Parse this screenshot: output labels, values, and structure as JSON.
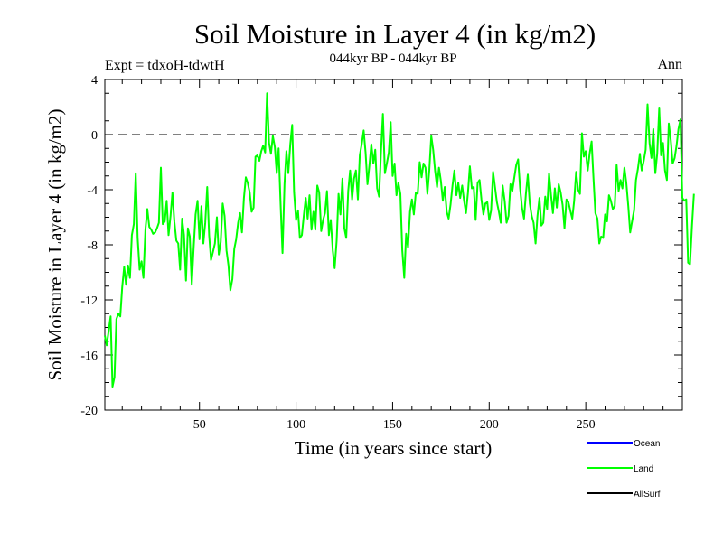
{
  "chart_data": {
    "type": "line",
    "title": "Soil Moisture in Layer 4 (in kg/m2)",
    "subtitle": "044kyr BP - 044kyr BP",
    "experiment_label": "Expt = tdxoH-tdwtH",
    "period_label": "Ann",
    "xlabel": "Time (in years since start)",
    "ylabel": "Soil Moisture in Layer 4 (in kg/m2)",
    "xlim": [
      1,
      300
    ],
    "ylim": [
      -20,
      4
    ],
    "x_ticks": [
      50,
      100,
      150,
      200,
      250
    ],
    "y_ticks": [
      4,
      0,
      -4,
      -8,
      -12,
      -16,
      -20
    ],
    "reference_line": {
      "y": 0,
      "style": "dashed"
    },
    "legend": [
      {
        "name": "Ocean",
        "color": "#0000ff"
      },
      {
        "name": "Land",
        "color": "#00ff00"
      },
      {
        "name": "AllSurf",
        "color": "#000000"
      }
    ],
    "legend_position": "bottom-right",
    "series": [
      {
        "name": "Land",
        "color": "#00ff00",
        "x_start": 1,
        "x_step": 1,
        "values": [
          -14.6,
          -15.3,
          -14.2,
          -13.2,
          -18.3,
          -17.6,
          -13.4,
          -13.0,
          -13.2,
          -11.1,
          -9.6,
          -10.9,
          -9.5,
          -10.4,
          -7.3,
          -6.5,
          -2.8,
          -7.5,
          -9.8,
          -9.2,
          -10.4,
          -6.9,
          -5.4,
          -6.7,
          -6.9,
          -7.2,
          -7.1,
          -6.8,
          -6.4,
          -2.4,
          -6.5,
          -6.3,
          -4.8,
          -7.3,
          -5.9,
          -4.2,
          -6.3,
          -7.7,
          -7.9,
          -9.8,
          -6.1,
          -7.3,
          -10.6,
          -6.8,
          -7.4,
          -10.9,
          -8.2,
          -5.8,
          -4.8,
          -7.6,
          -5.2,
          -7.9,
          -6.4,
          -3.8,
          -7.3,
          -9.1,
          -8.5,
          -7.9,
          -6.0,
          -8.7,
          -7.8,
          -5.0,
          -5.9,
          -8.4,
          -9.5,
          -11.3,
          -10.5,
          -8.3,
          -7.6,
          -6.4,
          -5.7,
          -7.1,
          -4.6,
          -3.1,
          -3.5,
          -4.2,
          -5.6,
          -5.3,
          -1.6,
          -1.5,
          -1.9,
          -1.2,
          -0.8,
          -1.3,
          3.0,
          -0.6,
          -1.4,
          -0.1,
          -0.9,
          -2.8,
          -1.0,
          -5.1,
          -8.6,
          -3.6,
          -1.2,
          -2.8,
          -0.7,
          0.7,
          -4.2,
          -6.2,
          -5.5,
          -7.5,
          -7.3,
          -5.9,
          -4.6,
          -6.1,
          -4.4,
          -6.9,
          -5.6,
          -6.9,
          -3.7,
          -4.2,
          -7.0,
          -6.2,
          -5.7,
          -4.1,
          -7.3,
          -6.2,
          -8.4,
          -9.7,
          -7.7,
          -4.3,
          -5.8,
          -3.2,
          -6.8,
          -7.5,
          -4.1,
          -2.6,
          -4.7,
          -3.2,
          -2.6,
          -4.7,
          -1.5,
          -0.7,
          0.3,
          -1.3,
          -3.6,
          -2.2,
          -0.7,
          -2.1,
          -1.1,
          -3.9,
          -4.5,
          -1.2,
          1.5,
          -2.8,
          -2.1,
          -1.3,
          0.9,
          -3.0,
          -2.1,
          -4.4,
          -3.5,
          -4.3,
          -8.4,
          -10.4,
          -7.2,
          -8.2,
          -5.6,
          -4.7,
          -5.8,
          -4.2,
          -4.3,
          -2.0,
          -3.1,
          -2.1,
          -2.4,
          -4.3,
          -2.6,
          -0.1,
          -1.1,
          -2.6,
          -3.8,
          -2.4,
          -3.4,
          -4.8,
          -3.8,
          -5.6,
          -6.1,
          -5.1,
          -3.7,
          -2.6,
          -4.4,
          -3.5,
          -4.6,
          -3.7,
          -4.8,
          -5.7,
          -4.2,
          -2.3,
          -3.9,
          -3.8,
          -6.2,
          -3.5,
          -3.3,
          -4.7,
          -5.8,
          -5.0,
          -4.9,
          -6.2,
          -5.5,
          -2.7,
          -3.8,
          -4.9,
          -5.6,
          -6.4,
          -3.7,
          -4.8,
          -6.4,
          -5.9,
          -3.6,
          -4.1,
          -3.1,
          -2.2,
          -1.8,
          -3.9,
          -5.3,
          -6.1,
          -4.3,
          -2.9,
          -5.0,
          -5.9,
          -6.4,
          -7.9,
          -5.9,
          -4.6,
          -6.6,
          -6.4,
          -4.5,
          -5.4,
          -2.8,
          -4.4,
          -5.7,
          -3.9,
          -5.3,
          -3.6,
          -4.2,
          -5.1,
          -6.8,
          -4.7,
          -4.9,
          -5.5,
          -6.1,
          -4.8,
          -2.7,
          -4.0,
          -4.3,
          0.1,
          -1.6,
          -1.2,
          -2.6,
          -1.4,
          -0.5,
          -3.2,
          -5.7,
          -6.1,
          -7.9,
          -7.4,
          -7.5,
          -5.8,
          -6.3,
          -4.4,
          -4.8,
          -5.4,
          -5.2,
          -2.2,
          -4.1,
          -3.3,
          -3.9,
          -2.4,
          -3.5,
          -5.2,
          -7.1,
          -6.3,
          -5.5,
          -3.3,
          -2.5,
          -1.4,
          -2.6,
          -1.9,
          -1.1,
          2.2,
          -0.6,
          -1.7,
          0.4,
          -2.8,
          -1.4,
          1.9,
          -1.5,
          -0.6,
          -2.6,
          -3.3,
          0.8,
          -0.4,
          -2.1,
          -1.7,
          -0.8,
          0.4,
          1.1,
          -4.6,
          -4.8,
          -4.7,
          -9.3,
          -9.4,
          -6.6,
          -4.3
        ]
      }
    ]
  }
}
